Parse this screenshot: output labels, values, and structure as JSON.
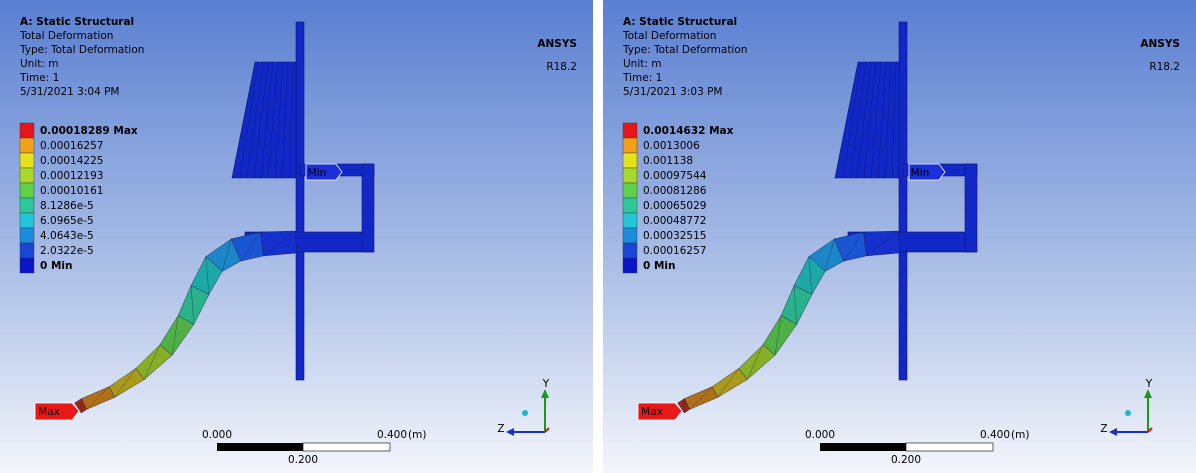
{
  "panels": [
    {
      "header": {
        "title": "A: Static Structural",
        "lines": [
          "Total Deformation",
          "Type: Total Deformation",
          "Unit: m",
          "Time: 1",
          "5/31/2021 3:04 PM"
        ]
      },
      "logo": {
        "name": "ANSYS",
        "version": "R18.2"
      },
      "legend": [
        "0.00018289 Max",
        "0.00016257",
        "0.00014225",
        "0.00012193",
        "0.00010161",
        "8.1286e-5",
        "6.0965e-5",
        "4.0643e-5",
        "2.0322e-5",
        "0 Min"
      ],
      "min_tag": "Min",
      "max_tag": "Max",
      "scale": {
        "start": "0.000",
        "end": "0.400",
        "unit": "(m)",
        "mid": "0.200"
      },
      "triad": {
        "y": "Y",
        "z": "Z"
      }
    },
    {
      "header": {
        "title": "A: Static Structural",
        "lines": [
          "Total Deformation",
          "Type: Total Deformation",
          "Unit: m",
          "Time: 1",
          "5/31/2021 3:03 PM"
        ]
      },
      "logo": {
        "name": "ANSYS",
        "version": "R18.2"
      },
      "legend": [
        "0.0014632 Max",
        "0.0013006",
        "0.001138",
        "0.00097544",
        "0.00081286",
        "0.00065029",
        "0.00048772",
        "0.00032515",
        "0.00016257",
        "0 Min"
      ],
      "min_tag": "Min",
      "max_tag": "Max",
      "scale": {
        "start": "0.000",
        "end": "0.400",
        "unit": "(m)",
        "mid": "0.200"
      },
      "triad": {
        "y": "Y",
        "z": "Z"
      }
    }
  ]
}
